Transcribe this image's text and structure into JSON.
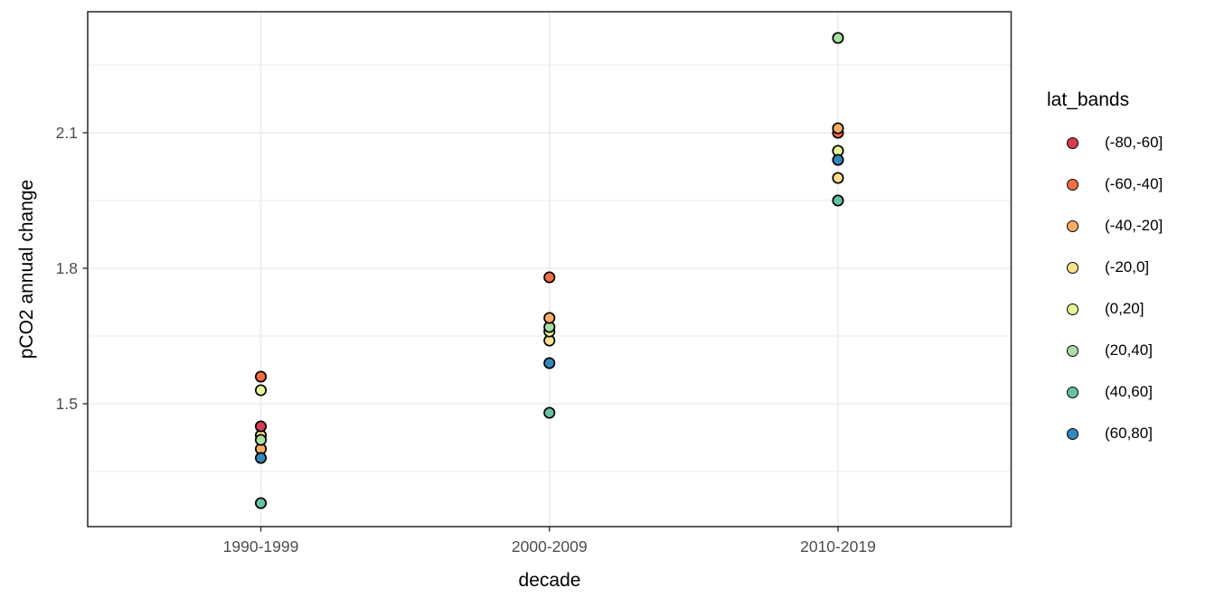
{
  "figure": {
    "y_axis_title": "pCO2 annual change",
    "x_axis_title": "decade"
  },
  "legend": {
    "title": "lat_bands"
  },
  "colors": {
    "background": "#FFFFFF",
    "panel_background": "#FFFFFF",
    "grid": "#EBEBEB",
    "panel_border": "#333333",
    "tick_mark": "#333333",
    "tick_label": "#4D4D4D",
    "axis_title": "#000000",
    "point_stroke": "#000000"
  },
  "chart_data": {
    "type": "scatter",
    "title": "",
    "xlabel": "decade",
    "ylabel": "pCO2 annual change",
    "categories": [
      "1990-1999",
      "2000-2009",
      "2010-2019"
    ],
    "y_ticks": [
      1.5,
      1.8,
      2.1
    ],
    "y_minor_gridlines": [
      1.35,
      1.65,
      1.95,
      2.25
    ],
    "ylim": [
      1.228,
      2.368
    ],
    "grid": "on",
    "legend_position": "right",
    "legend_title": "lat_bands",
    "bands": [
      {
        "label": "(-80,-60]",
        "color": "#D53E4F"
      },
      {
        "label": "(-60,-40]",
        "color": "#F46D43"
      },
      {
        "label": "(-40,-20]",
        "color": "#FDAE61"
      },
      {
        "label": "(-20,0]",
        "color": "#FEE08B"
      },
      {
        "label": "(0,20]",
        "color": "#E6F598"
      },
      {
        "label": "(20,40]",
        "color": "#ABDDA4"
      },
      {
        "label": "(40,60]",
        "color": "#66C2A5"
      },
      {
        "label": "(60,80]",
        "color": "#3288BD"
      }
    ],
    "points": [
      {
        "decade": "1990-1999",
        "band": "(-20,0]",
        "value": 1.43
      },
      {
        "decade": "1990-1999",
        "band": "(-40,-20]",
        "value": 1.4
      },
      {
        "decade": "1990-1999",
        "band": "(-80,-60]",
        "value": 1.45
      },
      {
        "decade": "1990-1999",
        "band": "(20,40]",
        "value": 1.42
      },
      {
        "decade": "1990-1999",
        "band": "(60,80]",
        "value": 1.38
      },
      {
        "decade": "1990-1999",
        "band": "(-60,-40]",
        "value": 1.56
      },
      {
        "decade": "1990-1999",
        "band": "(0,20]",
        "value": 1.53
      },
      {
        "decade": "1990-1999",
        "band": "(40,60]",
        "value": 1.28
      },
      {
        "decade": "2000-2009",
        "band": "(-20,0]",
        "value": 1.64
      },
      {
        "decade": "2000-2009",
        "band": "(0,20]",
        "value": 1.66
      },
      {
        "decade": "2000-2009",
        "band": "(20,40]",
        "value": 1.67
      },
      {
        "decade": "2000-2009",
        "band": "(-40,-20]",
        "value": 1.69
      },
      {
        "decade": "2000-2009",
        "band": "(-60,-40]",
        "value": 1.78
      },
      {
        "decade": "2000-2009",
        "band": "(60,80]",
        "value": 1.59
      },
      {
        "decade": "2000-2009",
        "band": "(40,60]",
        "value": 1.48
      },
      {
        "decade": "2010-2019",
        "band": "(-60,-40]",
        "value": 2.1
      },
      {
        "decade": "2010-2019",
        "band": "(-40,-20]",
        "value": 2.11
      },
      {
        "decade": "2010-2019",
        "band": "(0,20]",
        "value": 2.06
      },
      {
        "decade": "2010-2019",
        "band": "(60,80]",
        "value": 2.04
      },
      {
        "decade": "2010-2019",
        "band": "(20,40]",
        "value": 2.31
      },
      {
        "decade": "2010-2019",
        "band": "(-20,0]",
        "value": 2.0
      },
      {
        "decade": "2010-2019",
        "band": "(40,60]",
        "value": 1.95
      }
    ]
  }
}
